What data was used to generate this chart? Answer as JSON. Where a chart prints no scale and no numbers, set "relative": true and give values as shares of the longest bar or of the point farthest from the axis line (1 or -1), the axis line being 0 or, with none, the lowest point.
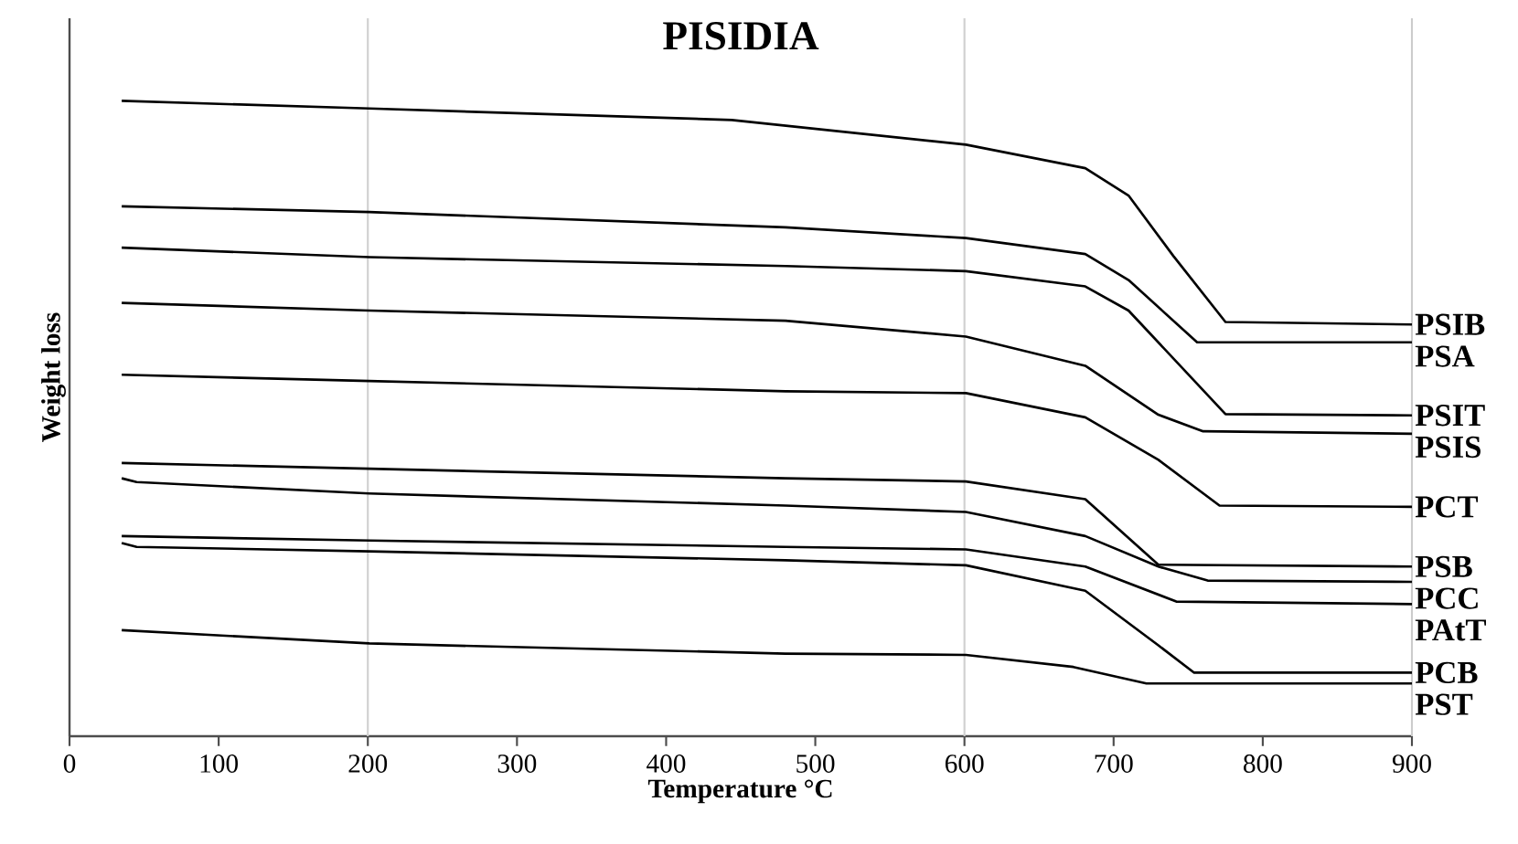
{
  "chart_data": {
    "type": "line",
    "title": "PISIDIA",
    "xlabel": "Temperature °C",
    "ylabel": "Weight loss",
    "relative": true,
    "xlim": [
      0,
      900
    ],
    "xticks": [
      0,
      100,
      200,
      300,
      400,
      500,
      600,
      700,
      800,
      900
    ],
    "ref_lines": [
      {
        "axis": "x",
        "value": 200,
        "color": "#d0d0d0"
      },
      {
        "axis": "x",
        "value": 600,
        "color": "#d0d0d0"
      }
    ],
    "series": [
      {
        "name": "PSIB",
        "color": "#000000",
        "x": [
          35,
          201,
          444,
          601,
          681,
          710,
          740,
          775,
          900
        ],
        "values": [
          1.0,
          0.988,
          0.97,
          0.931,
          0.894,
          0.851,
          0.756,
          0.652,
          0.648
        ]
      },
      {
        "name": "PSA",
        "color": "#000000",
        "x": [
          35,
          201,
          480,
          601,
          681,
          710,
          756,
          900
        ],
        "values": [
          0.834,
          0.825,
          0.801,
          0.784,
          0.759,
          0.718,
          0.62,
          0.62
        ]
      },
      {
        "name": "PSIT",
        "color": "#000000",
        "x": [
          35,
          201,
          480,
          601,
          681,
          710,
          775,
          900
        ],
        "values": [
          0.769,
          0.754,
          0.74,
          0.732,
          0.708,
          0.67,
          0.507,
          0.505
        ]
      },
      {
        "name": "PSIS",
        "color": "#000000",
        "x": [
          35,
          201,
          480,
          601,
          681,
          730,
          760,
          900
        ],
        "values": [
          0.682,
          0.67,
          0.654,
          0.629,
          0.583,
          0.506,
          0.48,
          0.476
        ]
      },
      {
        "name": "PCT",
        "color": "#000000",
        "x": [
          35,
          201,
          480,
          601,
          681,
          730,
          771,
          900
        ],
        "values": [
          0.569,
          0.559,
          0.543,
          0.54,
          0.502,
          0.435,
          0.363,
          0.361
        ]
      },
      {
        "name": "PSB",
        "color": "#000000",
        "x": [
          35,
          201,
          480,
          601,
          681,
          730,
          900
        ],
        "values": [
          0.43,
          0.421,
          0.406,
          0.401,
          0.373,
          0.27,
          0.267
        ]
      },
      {
        "name": "PCC",
        "color": "#000000",
        "x": [
          35,
          45,
          201,
          480,
          601,
          681,
          730,
          763,
          900
        ],
        "values": [
          0.406,
          0.4,
          0.382,
          0.363,
          0.353,
          0.315,
          0.267,
          0.245,
          0.243
        ]
      },
      {
        "name": "PAtT",
        "color": "#000000",
        "x": [
          35,
          201,
          480,
          601,
          681,
          742,
          900
        ],
        "values": [
          0.315,
          0.308,
          0.298,
          0.294,
          0.267,
          0.212,
          0.208
        ]
      },
      {
        "name": "PCB",
        "color": "#000000",
        "x": [
          35,
          45,
          201,
          480,
          601,
          681,
          730,
          754,
          900
        ],
        "values": [
          0.304,
          0.298,
          0.291,
          0.277,
          0.269,
          0.229,
          0.143,
          0.1,
          0.1
        ]
      },
      {
        "name": "PST",
        "color": "#000000",
        "x": [
          35,
          201,
          480,
          601,
          673,
          722,
          900
        ],
        "values": [
          0.167,
          0.146,
          0.13,
          0.128,
          0.109,
          0.083,
          0.083
        ]
      }
    ]
  }
}
